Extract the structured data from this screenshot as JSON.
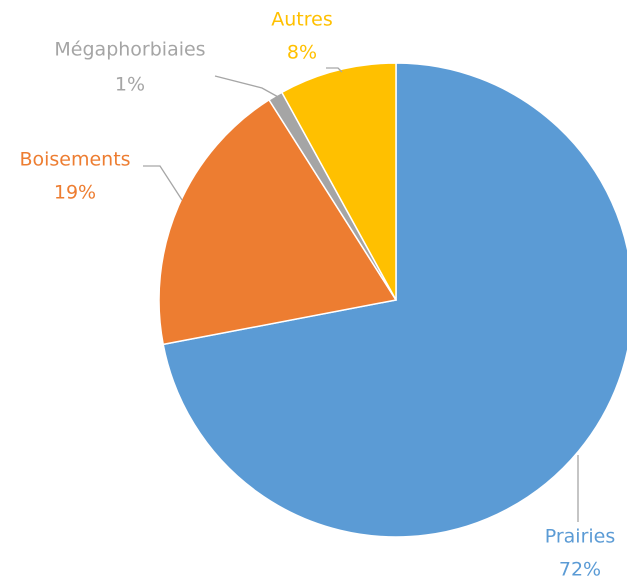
{
  "chart_data": {
    "type": "pie",
    "categories": [
      "Prairies",
      "Boisements",
      "Mégaphorbiaies",
      "Autres"
    ],
    "values": [
      72,
      19,
      1,
      8
    ],
    "value_labels": [
      "72%",
      "19%",
      "1%",
      "8%"
    ],
    "colors": [
      "#5b9bd5",
      "#ed7d31",
      "#a5a5a5",
      "#ffc000"
    ]
  }
}
